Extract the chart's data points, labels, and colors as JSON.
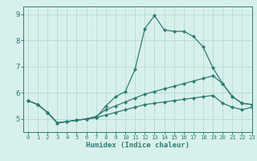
{
  "xlabel": "Humidex (Indice chaleur)",
  "xlim": [
    -0.5,
    23
  ],
  "ylim": [
    4.5,
    9.3
  ],
  "yticks": [
    5,
    6,
    7,
    8,
    9
  ],
  "xticks": [
    0,
    1,
    2,
    3,
    4,
    5,
    6,
    7,
    8,
    9,
    10,
    11,
    12,
    13,
    14,
    15,
    16,
    17,
    18,
    19,
    20,
    21,
    22,
    23
  ],
  "bg_color": "#d8f0ec",
  "line_color": "#2e7d72",
  "grid_color": "#b8ddd8",
  "series": [
    {
      "x": [
        0,
        1,
        2,
        3,
        4,
        5,
        6,
        7,
        8,
        9,
        10,
        11,
        12,
        13,
        14,
        15,
        16,
        17,
        18,
        19,
        20,
        21,
        22,
        23
      ],
      "y": [
        5.7,
        5.55,
        5.25,
        4.85,
        4.9,
        4.95,
        5.0,
        5.05,
        5.5,
        5.85,
        6.05,
        6.9,
        8.45,
        8.95,
        8.4,
        8.35,
        8.35,
        8.15,
        7.75,
        6.95,
        6.35,
        5.85,
        5.6,
        5.55
      ]
    },
    {
      "x": [
        0,
        1,
        2,
        3,
        4,
        5,
        6,
        7,
        8,
        9,
        10,
        11,
        12,
        13,
        14,
        15,
        16,
        17,
        18,
        19,
        20,
        21,
        22,
        23
      ],
      "y": [
        5.7,
        5.55,
        5.25,
        4.85,
        4.9,
        4.95,
        5.0,
        5.1,
        5.35,
        5.5,
        5.65,
        5.8,
        5.95,
        6.05,
        6.15,
        6.25,
        6.35,
        6.45,
        6.55,
        6.65,
        6.35,
        5.85,
        5.6,
        5.55
      ]
    },
    {
      "x": [
        0,
        1,
        2,
        3,
        4,
        5,
        6,
        7,
        8,
        9,
        10,
        11,
        12,
        13,
        14,
        15,
        16,
        17,
        18,
        19,
        20,
        21,
        22,
        23
      ],
      "y": [
        5.7,
        5.55,
        5.25,
        4.85,
        4.9,
        4.95,
        5.0,
        5.05,
        5.15,
        5.25,
        5.35,
        5.45,
        5.55,
        5.6,
        5.65,
        5.7,
        5.75,
        5.8,
        5.85,
        5.9,
        5.6,
        5.45,
        5.35,
        5.45
      ]
    }
  ]
}
